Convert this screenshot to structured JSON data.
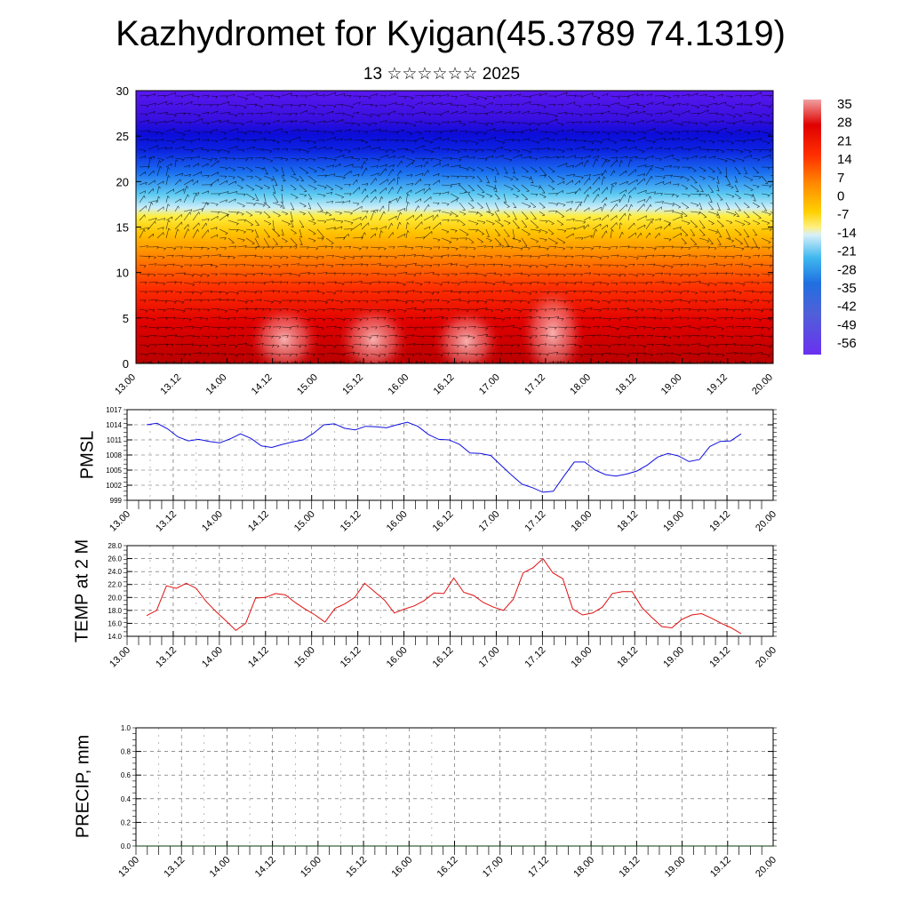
{
  "title": "Kazhydromet for Kyigan(45.3789 74.1319)",
  "subtitle": "13 ☆☆☆☆☆☆ 2025",
  "colors": {
    "pmsl_line": "#1010e0",
    "temp_line": "#e01010",
    "precip_line": "#0a3a0a"
  },
  "chart_data": [
    {
      "type": "heatmap",
      "title": "",
      "xlabel": "",
      "ylabel": "",
      "x_ticks": [
        "13.00",
        "13.12",
        "14.00",
        "14.12",
        "15.00",
        "15.12",
        "16.00",
        "16.12",
        "17.00",
        "17.12",
        "18.00",
        "18.12",
        "19.00",
        "19.12",
        "20.00"
      ],
      "y_ticks": [
        "0",
        "5",
        "10",
        "15",
        "20",
        "25",
        "30"
      ],
      "ylim": [
        0,
        30
      ],
      "colorbar": {
        "labels": [
          "35",
          "28",
          "21",
          "14",
          "7",
          "0",
          "-7",
          "-14",
          "-21",
          "-28",
          "-35",
          "-42",
          "-49",
          "-56"
        ]
      },
      "vector_overlay": true
    },
    {
      "type": "line",
      "ylabel": "PMSL",
      "x_ticks": [
        "13.00",
        "13.12",
        "14.00",
        "14.12",
        "15.00",
        "15.12",
        "16.00",
        "16.12",
        "17.00",
        "17.12",
        "18.00",
        "18.12",
        "19.00",
        "19.12",
        "20.00"
      ],
      "y_ticks": [
        "1017",
        "1014",
        "1011",
        "1008",
        "1005",
        "1002",
        "999"
      ],
      "ylim": [
        999,
        1017
      ],
      "grid": true,
      "series": [
        {
          "values": [
            1014.0,
            1014.3,
            1013.2,
            1011.6,
            1010.8,
            1011.1,
            1010.7,
            1010.4,
            1011.2,
            1012.2,
            1011.3,
            1009.8,
            1009.5,
            1010.1,
            1010.6,
            1011.0,
            1012.3,
            1014.0,
            1014.2,
            1013.3,
            1013.0,
            1013.7,
            1013.6,
            1013.4,
            1014.0,
            1014.5,
            1013.7,
            1012.1,
            1011.1,
            1011.0,
            1010.1,
            1008.4,
            1008.3,
            1007.9,
            1005.9,
            1004.0,
            1002.2,
            1001.5,
            1000.6,
            1000.8,
            1003.8,
            1006.6,
            1006.6,
            1005.0,
            1004.1,
            1003.8,
            1004.2,
            1004.8,
            1006.0,
            1007.6,
            1008.3,
            1007.8,
            1006.7,
            1007.1,
            1009.7,
            1010.7,
            1010.8,
            1012.2
          ]
        }
      ]
    },
    {
      "type": "line",
      "ylabel": "TEMP at 2 M",
      "x_ticks": [
        "13.00",
        "13.12",
        "14.00",
        "14.12",
        "15.00",
        "15.12",
        "16.00",
        "16.12",
        "17.00",
        "17.12",
        "18.00",
        "18.12",
        "19.00",
        "19.12",
        "20.00"
      ],
      "y_ticks": [
        "28.0",
        "26.0",
        "24.0",
        "22.0",
        "20.0",
        "18.0",
        "16.0",
        "14.0"
      ],
      "ylim": [
        14,
        28
      ],
      "grid": true,
      "series": [
        {
          "values": [
            17.2,
            18.0,
            21.8,
            21.4,
            22.2,
            21.4,
            19.4,
            17.8,
            16.4,
            14.9,
            16.0,
            19.9,
            20.0,
            20.6,
            20.4,
            19.2,
            18.2,
            17.3,
            16.2,
            18.3,
            19.0,
            20.0,
            22.2,
            20.9,
            19.6,
            17.6,
            18.2,
            18.7,
            19.5,
            20.7,
            20.6,
            23.0,
            20.8,
            20.3,
            19.2,
            18.5,
            18.0,
            19.7,
            23.8,
            24.6,
            26.0,
            23.8,
            22.9,
            18.2,
            17.3,
            17.6,
            18.5,
            20.6,
            20.9,
            20.9,
            18.4,
            16.9,
            15.5,
            15.3,
            16.6,
            17.3,
            17.5,
            16.8,
            16.0,
            15.3,
            14.4
          ]
        }
      ]
    },
    {
      "type": "line",
      "ylabel": "PRECIP, mm",
      "x_ticks": [
        "13.00",
        "13.12",
        "14.00",
        "14.12",
        "15.00",
        "15.12",
        "16.00",
        "16.12",
        "17.00",
        "17.12",
        "18.00",
        "18.12",
        "19.00",
        "19.12",
        "20.00"
      ],
      "y_ticks": [
        "1.0",
        "0.8",
        "0.6",
        "0.4",
        "0.2",
        "0.0"
      ],
      "ylim": [
        0,
        1
      ],
      "grid": true,
      "series": [
        {
          "values": [
            0,
            0,
            0,
            0,
            0,
            0,
            0,
            0,
            0,
            0,
            0,
            0,
            0,
            0,
            0,
            0,
            0,
            0,
            0,
            0,
            0,
            0,
            0,
            0,
            0,
            0,
            0,
            0,
            0,
            0,
            0,
            0,
            0,
            0,
            0,
            0,
            0,
            0,
            0,
            0,
            0,
            0,
            0,
            0,
            0,
            0,
            0,
            0,
            0,
            0,
            0,
            0,
            0,
            0,
            0,
            0,
            0,
            0,
            0
          ]
        }
      ]
    }
  ]
}
